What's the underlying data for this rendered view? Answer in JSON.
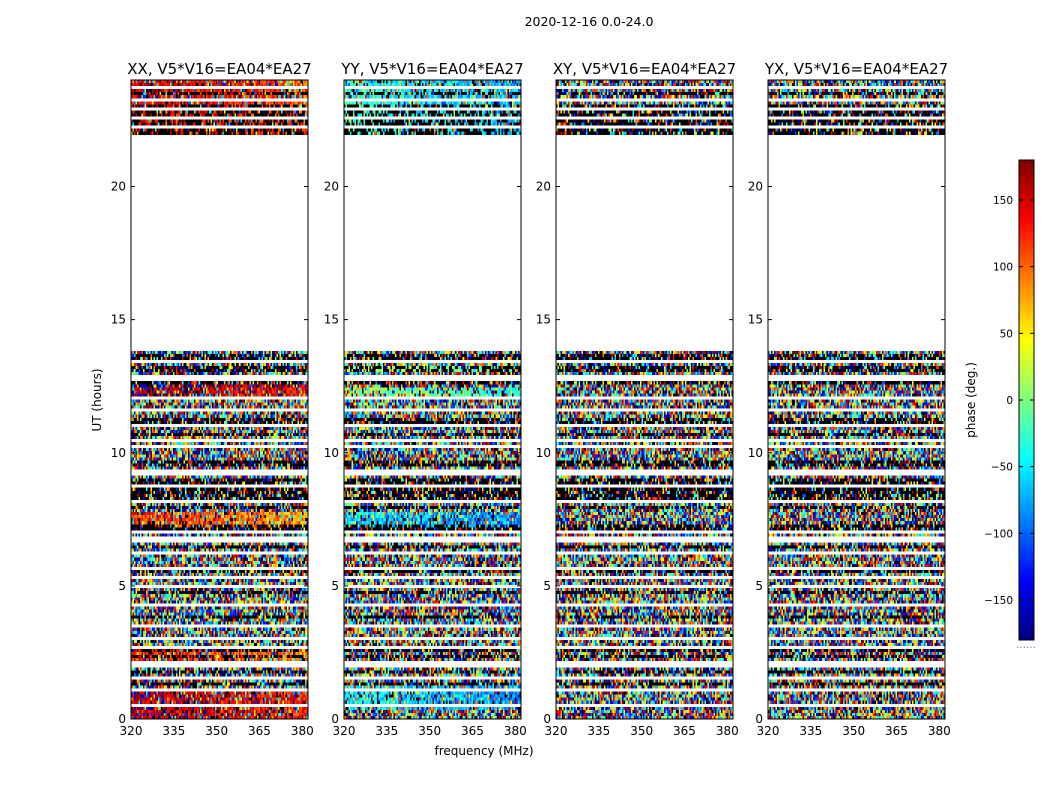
{
  "figure": {
    "suptitle": "2020-12-16 0.0-24.0",
    "xlabel": "frequency (MHz)",
    "ylabel": "UT (hours)",
    "colorbar_label": "phase (deg.)",
    "colorbar_note": "......"
  },
  "chart_data": [
    {
      "type": "heatmap",
      "title": "XX, V5*V16=EA04*EA27",
      "xlabel": "frequency (MHz)",
      "ylabel": "UT (hours)",
      "xlim": [
        320,
        382
      ],
      "ylim": [
        0,
        24
      ],
      "xticks": [
        320,
        335,
        350,
        365,
        380
      ],
      "yticks": [
        0,
        5,
        10,
        15,
        20
      ],
      "value_label": "phase (deg.)",
      "value_range": [
        -180,
        180
      ],
      "data_gap": [
        14.0,
        21.9
      ],
      "coherent_bands": [
        {
          "ut_start": 0.0,
          "ut_end": 1.0,
          "phase": 165
        },
        {
          "ut_start": 2.2,
          "ut_end": 2.6,
          "phase": 130
        },
        {
          "ut_start": 7.2,
          "ut_end": 7.8,
          "phase": 120
        },
        {
          "ut_start": 12.1,
          "ut_end": 12.4,
          "phase": 170
        },
        {
          "ut_start": 12.45,
          "ut_end": 12.6,
          "phase": -170
        },
        {
          "ut_start": 22.0,
          "ut_end": 24.0,
          "phase": 150
        }
      ]
    },
    {
      "type": "heatmap",
      "title": "YY, V5*V16=EA04*EA27",
      "xlabel": "frequency (MHz)",
      "ylabel": "UT (hours)",
      "xlim": [
        320,
        382
      ],
      "ylim": [
        0,
        24
      ],
      "xticks": [
        320,
        335,
        350,
        365,
        380
      ],
      "yticks": [
        0,
        5,
        10,
        15,
        20
      ],
      "value_label": "phase (deg.)",
      "value_range": [
        -180,
        180
      ],
      "data_gap": [
        14.0,
        21.9
      ],
      "coherent_bands": [
        {
          "ut_start": 0.3,
          "ut_end": 1.2,
          "phase": -40
        },
        {
          "ut_start": 7.2,
          "ut_end": 7.8,
          "phase": -45
        },
        {
          "ut_start": 12.1,
          "ut_end": 12.5,
          "phase": 10
        },
        {
          "ut_start": 13.0,
          "ut_end": 13.3,
          "phase": 20
        },
        {
          "ut_start": 22.0,
          "ut_end": 24.0,
          "phase": -30
        }
      ]
    },
    {
      "type": "heatmap",
      "title": "XY, V5*V16=EA04*EA27",
      "xlabel": "frequency (MHz)",
      "ylabel": "UT (hours)",
      "xlim": [
        320,
        382
      ],
      "ylim": [
        0,
        24
      ],
      "xticks": [
        320,
        335,
        350,
        365,
        380
      ],
      "yticks": [
        0,
        5,
        10,
        15,
        20
      ],
      "value_label": "phase (deg.)",
      "value_range": [
        -180,
        180
      ],
      "data_gap": [
        14.0,
        21.9
      ],
      "coherent_bands": []
    },
    {
      "type": "heatmap",
      "title": "YX, V5*V16=EA04*EA27",
      "xlabel": "frequency (MHz)",
      "ylabel": "UT (hours)",
      "xlim": [
        320,
        382
      ],
      "ylim": [
        0,
        24
      ],
      "xticks": [
        320,
        335,
        350,
        365,
        380
      ],
      "yticks": [
        0,
        5,
        10,
        15,
        20
      ],
      "value_label": "phase (deg.)",
      "value_range": [
        -180,
        180
      ],
      "data_gap": [
        14.0,
        21.9
      ],
      "coherent_bands": []
    }
  ],
  "colorbar": {
    "min": -180,
    "max": 180,
    "ticks": [
      -150,
      -100,
      -50,
      0,
      50,
      100,
      150
    ],
    "tick_labels": [
      "−150",
      "−100",
      "−50",
      "0",
      "50",
      "100",
      "150"
    ],
    "colormap": "jet"
  },
  "blank_rows_ut": [
    0.5,
    1.1,
    1.55,
    2.05,
    2.7,
    3.0,
    3.5,
    4.3,
    5.0,
    5.35,
    5.7,
    6.2,
    6.75,
    7.05,
    8.2,
    8.7,
    9.2,
    9.3,
    10.2,
    10.5,
    11.0,
    11.6,
    12.05,
    12.8,
    13.4,
    13.95,
    22.2,
    22.6,
    22.9,
    23.3,
    23.7
  ],
  "dark_rows_ut": [
    1.35,
    1.8,
    2.35,
    2.62,
    3.8,
    4.75,
    5.55,
    6.5,
    7.15,
    7.3,
    7.9,
    8.3,
    8.45,
    8.6,
    8.8,
    9.0,
    9.6,
    10.7,
    11.2,
    12.65,
    13.15,
    13.6,
    22.05,
    22.4,
    22.75,
    23.05,
    23.45
  ]
}
